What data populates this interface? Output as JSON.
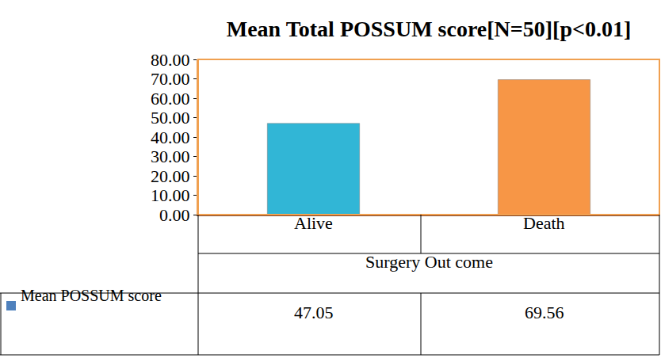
{
  "chart_data": {
    "type": "bar",
    "title": "Mean Total POSSUM score[N=50][p<0.01]",
    "xlabel": "Surgery Out come",
    "categories": [
      "Alive",
      "Death"
    ],
    "series": [
      {
        "name": "Mean POSSUM score",
        "color": "#4f81bd",
        "values": [
          47.05,
          69.56
        ]
      }
    ],
    "colors": [
      "#31b6d6",
      "#f79646"
    ],
    "ylim": [
      0,
      80
    ],
    "yticks": [
      {
        "value": 0,
        "label": "0.00"
      },
      {
        "value": 10,
        "label": "10.00"
      },
      {
        "value": 20,
        "label": "20.00"
      },
      {
        "value": 30,
        "label": "30.00"
      },
      {
        "value": 40,
        "label": "40.00"
      },
      {
        "value": 50,
        "label": "50.00"
      },
      {
        "value": 60,
        "label": "60.00"
      },
      {
        "value": 70,
        "label": "70.00"
      },
      {
        "value": 80,
        "label": "80.00"
      }
    ],
    "grid": false
  }
}
